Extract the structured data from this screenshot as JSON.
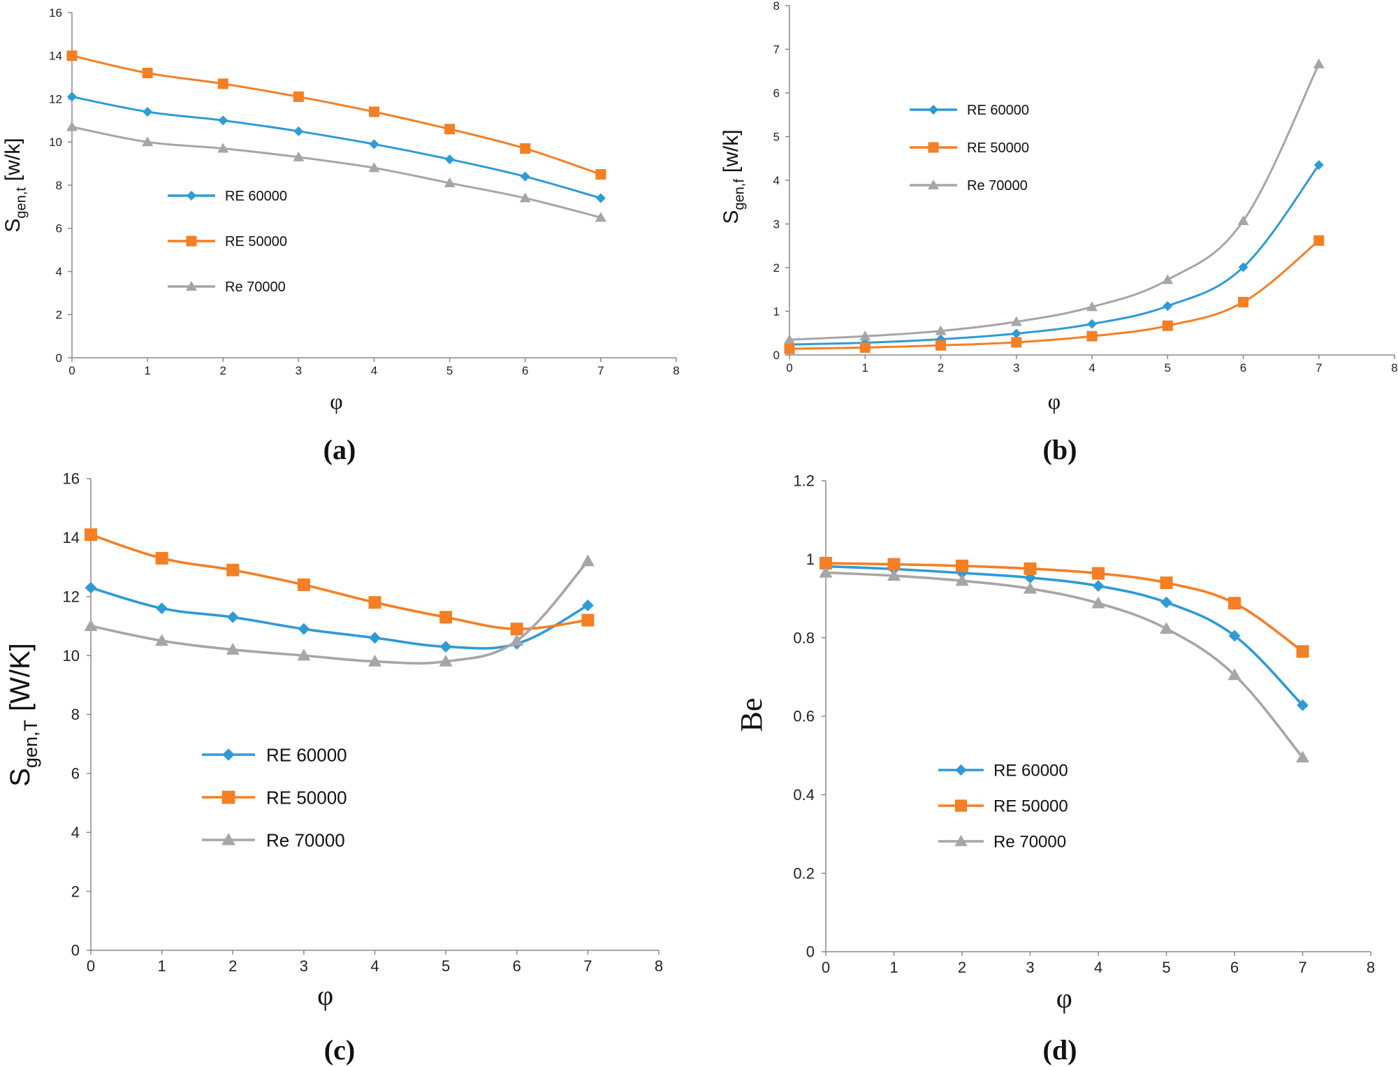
{
  "colors": {
    "blue": "#2e9bd6",
    "orange": "#f47f24",
    "gray": "#a6a6a6",
    "axis": "#888888"
  },
  "chart_data": [
    {
      "id": "a",
      "type": "line",
      "panel_label": "(a)",
      "xlabel": "φ",
      "ylabel_main": "S",
      "ylabel_sub": "gen,t",
      "ylabel_unit": "[w/k]",
      "xlim": [
        0,
        8
      ],
      "ylim": [
        0,
        16
      ],
      "xticks": [
        "0",
        "1",
        "2",
        "3",
        "4",
        "5",
        "6",
        "7",
        "8"
      ],
      "yticks": [
        "0",
        "2",
        "4",
        "6",
        "8",
        "10",
        "12",
        "14",
        "16"
      ],
      "x": [
        0,
        1,
        2,
        3,
        4,
        5,
        6,
        7
      ],
      "series": [
        {
          "name": "RE 60000",
          "color": "blue",
          "marker": "diamond",
          "values": [
            12.1,
            11.4,
            11.0,
            10.5,
            9.9,
            9.2,
            8.4,
            7.4
          ]
        },
        {
          "name": "RE 50000",
          "color": "orange",
          "marker": "square",
          "values": [
            14.0,
            13.2,
            12.7,
            12.1,
            11.4,
            10.6,
            9.7,
            8.5
          ]
        },
        {
          "name": "Re 70000",
          "color": "gray",
          "marker": "triangle",
          "values": [
            10.7,
            10.0,
            9.7,
            9.3,
            8.8,
            8.1,
            7.4,
            6.5
          ]
        }
      ],
      "legend": "left-middle"
    },
    {
      "id": "b",
      "type": "line",
      "panel_label": "(b)",
      "xlabel": "φ",
      "ylabel_main": "S",
      "ylabel_sub": "gen,f",
      "ylabel_unit": "[w/k]",
      "xlim": [
        0,
        8
      ],
      "ylim": [
        0,
        8
      ],
      "xticks": [
        "0",
        "1",
        "2",
        "3",
        "4",
        "5",
        "6",
        "7",
        "8"
      ],
      "yticks": [
        "0",
        "1",
        "2",
        "3",
        "4",
        "5",
        "6",
        "7",
        "8"
      ],
      "x": [
        0,
        1,
        2,
        3,
        4,
        5,
        6,
        7
      ],
      "series": [
        {
          "name": "RE 60000",
          "color": "blue",
          "marker": "diamond",
          "values": [
            0.24,
            0.28,
            0.36,
            0.49,
            0.71,
            1.12,
            2.01,
            4.35
          ]
        },
        {
          "name": "RE 50000",
          "color": "orange",
          "marker": "square",
          "values": [
            0.14,
            0.17,
            0.22,
            0.29,
            0.43,
            0.67,
            1.21,
            2.62
          ]
        },
        {
          "name": "Re 70000",
          "color": "gray",
          "marker": "triangle",
          "values": [
            0.35,
            0.43,
            0.55,
            0.76,
            1.1,
            1.72,
            3.07,
            6.66
          ]
        }
      ],
      "legend": "top-left"
    },
    {
      "id": "c",
      "type": "line",
      "panel_label": "(c)",
      "xlabel": "φ",
      "ylabel_main": "S",
      "ylabel_sub": "gen,T",
      "ylabel_unit": "[W/K]",
      "xlim": [
        0,
        8
      ],
      "ylim": [
        0,
        16
      ],
      "xticks": [
        "0",
        "1",
        "2",
        "3",
        "4",
        "5",
        "6",
        "7",
        "8"
      ],
      "yticks": [
        "0",
        "2",
        "4",
        "6",
        "8",
        "10",
        "12",
        "14",
        "16"
      ],
      "x": [
        0,
        1,
        2,
        3,
        4,
        5,
        6,
        7
      ],
      "series": [
        {
          "name": "RE 60000",
          "color": "blue",
          "marker": "diamond",
          "values": [
            12.3,
            11.6,
            11.3,
            10.9,
            10.6,
            10.3,
            10.4,
            11.7
          ]
        },
        {
          "name": "RE 50000",
          "color": "orange",
          "marker": "square",
          "values": [
            14.1,
            13.3,
            12.9,
            12.4,
            11.8,
            11.3,
            10.9,
            11.2
          ]
        },
        {
          "name": "Re 70000",
          "color": "gray",
          "marker": "triangle",
          "values": [
            11.0,
            10.5,
            10.2,
            10.0,
            9.8,
            9.8,
            10.5,
            13.2
          ]
        }
      ],
      "legend": "left-middle"
    },
    {
      "id": "d",
      "type": "line",
      "panel_label": "(d)",
      "xlabel": "φ",
      "ylabel_main": "Be",
      "ylabel_sub": "",
      "ylabel_unit": "",
      "xlim": [
        0,
        8
      ],
      "ylim": [
        0,
        1.2
      ],
      "xticks": [
        "0",
        "1",
        "2",
        "3",
        "4",
        "5",
        "6",
        "7",
        "8"
      ],
      "yticks": [
        "0",
        "0.2",
        "0.4",
        "0.6",
        "0.8",
        "1",
        "1.2"
      ],
      "x": [
        0,
        1,
        2,
        3,
        4,
        5,
        6,
        7
      ],
      "series": [
        {
          "name": "RE 60000",
          "color": "blue",
          "marker": "diamond",
          "values": [
            0.982,
            0.975,
            0.965,
            0.953,
            0.932,
            0.89,
            0.805,
            0.628
          ]
        },
        {
          "name": "RE 50000",
          "color": "orange",
          "marker": "square",
          "values": [
            0.99,
            0.987,
            0.983,
            0.976,
            0.964,
            0.94,
            0.888,
            0.765
          ]
        },
        {
          "name": "Re 70000",
          "color": "gray",
          "marker": "triangle",
          "values": [
            0.966,
            0.958,
            0.945,
            0.925,
            0.888,
            0.823,
            0.705,
            0.495
          ]
        }
      ],
      "legend": "bottom-center"
    }
  ]
}
